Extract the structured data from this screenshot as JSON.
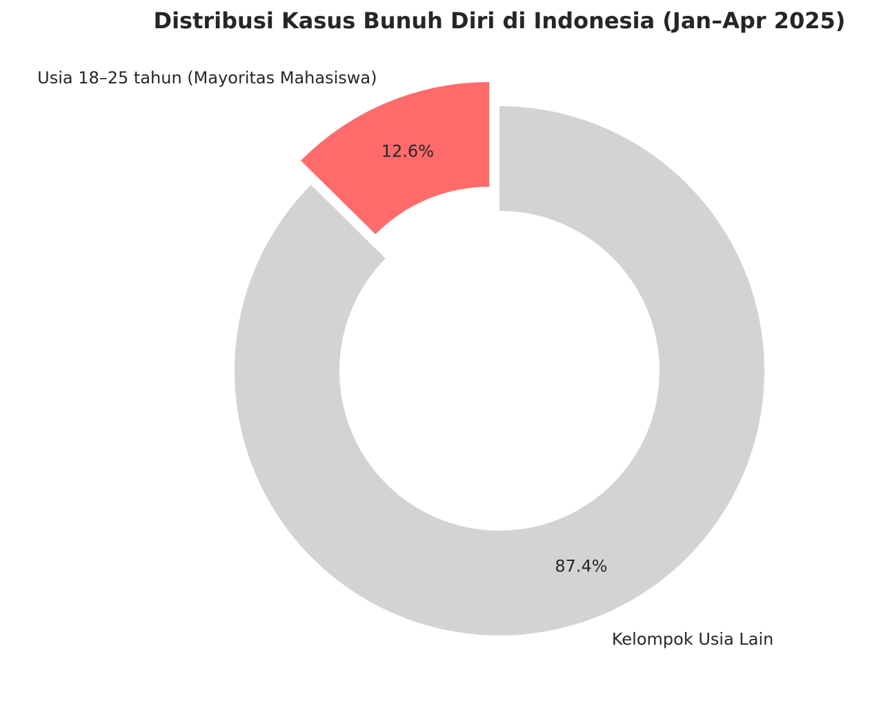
{
  "chart_data": {
    "type": "pie",
    "variant": "donut",
    "title": "Distribusi Kasus Bunuh Diri di Indonesia (Jan–Apr 2025)",
    "slices": [
      {
        "label": "Usia 18–25 tahun (Mayoritas Mahasiswa)",
        "value": 12.6,
        "value_label": "12.6%",
        "color": "#ff6b6b",
        "exploded": true
      },
      {
        "label": "Kelompok Usia Lain",
        "value": 87.4,
        "value_label": "87.4%",
        "color": "#d3d3d3",
        "exploded": false
      }
    ],
    "start_angle_deg": 90,
    "direction": "counterclockwise",
    "legend": "none"
  }
}
